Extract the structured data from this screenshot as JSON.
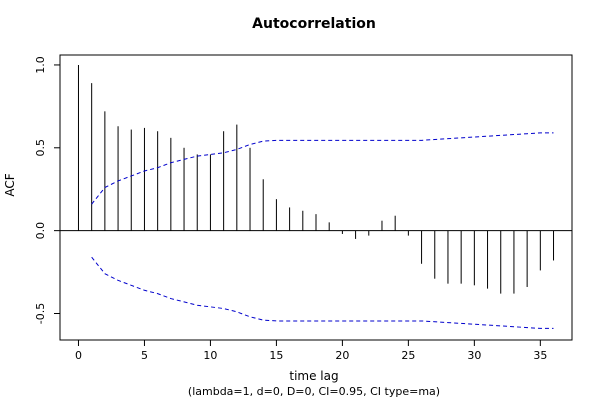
{
  "colors": {
    "spike": "#000000",
    "ci": "#0000CC",
    "axis": "#000000",
    "background": "#ffffff"
  },
  "chart_data": {
    "type": "bar",
    "title": "Autocorrelation",
    "xlabel": "time lag",
    "ylabel": "ACF",
    "subtitle": "(lambda=1, d=0, D=0, CI=0.95, CI type=ma)",
    "xlim": [
      -1.4,
      37.4
    ],
    "ylim": [
      -0.66,
      1.06
    ],
    "x_ticks": [
      0,
      5,
      10,
      15,
      20,
      25,
      30,
      35
    ],
    "x_tick_labels": [
      "0",
      "5",
      "10",
      "15",
      "20",
      "25",
      "30",
      "35"
    ],
    "y_ticks": [
      -0.5,
      0.0,
      0.5,
      1.0
    ],
    "y_tick_labels": [
      "-0.5",
      "0.0",
      "0.5",
      "1.0"
    ],
    "grid": false,
    "legend": "none",
    "series": [
      {
        "lags": [
          0,
          1,
          2,
          3,
          4,
          5,
          6,
          7,
          8,
          9,
          10,
          11,
          12,
          13,
          14,
          15,
          16,
          17,
          18,
          19,
          20,
          21,
          22,
          23,
          24,
          25,
          26,
          27,
          28,
          29,
          30,
          31,
          32,
          33,
          34,
          35,
          36
        ],
        "values": [
          1.0,
          0.89,
          0.72,
          0.63,
          0.61,
          0.62,
          0.6,
          0.56,
          0.5,
          0.46,
          0.46,
          0.6,
          0.64,
          0.5,
          0.31,
          0.19,
          0.14,
          0.12,
          0.1,
          0.05,
          -0.02,
          -0.05,
          -0.03,
          0.06,
          0.09,
          -0.03,
          -0.2,
          -0.29,
          -0.32,
          -0.32,
          -0.33,
          -0.35,
          -0.38,
          -0.38,
          -0.34,
          -0.24,
          -0.18
        ]
      },
      {
        "lags": [
          1,
          2,
          3,
          4,
          5,
          6,
          7,
          8,
          9,
          10,
          11,
          12,
          13,
          14,
          15,
          16,
          17,
          18,
          19,
          20,
          21,
          22,
          23,
          24,
          25,
          26,
          27,
          28,
          29,
          30,
          31,
          32,
          33,
          34,
          35,
          36
        ],
        "values": [
          0.16,
          0.26,
          0.3,
          0.33,
          0.36,
          0.38,
          0.41,
          0.43,
          0.45,
          0.46,
          0.47,
          0.49,
          0.52,
          0.54,
          0.545,
          0.545,
          0.545,
          0.545,
          0.545,
          0.545,
          0.545,
          0.545,
          0.545,
          0.545,
          0.545,
          0.545,
          0.55,
          0.555,
          0.56,
          0.565,
          0.57,
          0.575,
          0.58,
          0.585,
          0.59,
          0.59
        ]
      }
    ]
  }
}
